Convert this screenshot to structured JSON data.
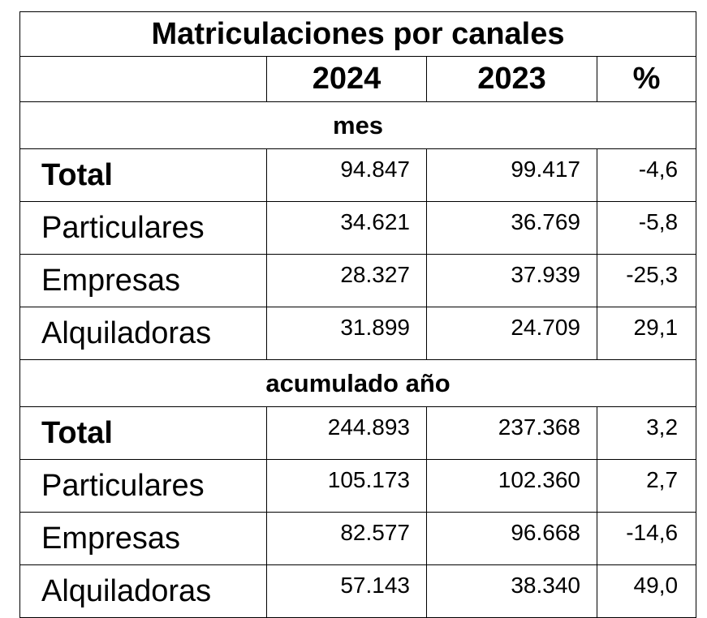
{
  "title": "Matriculaciones por canales",
  "headers": {
    "col2": "2024",
    "col3": "2023",
    "col4": "%"
  },
  "sections": [
    {
      "label": "mes",
      "rows": [
        {
          "label": "Total",
          "bold": true,
          "v2024": "94.847",
          "v2023": "99.417",
          "pct": "-4,6"
        },
        {
          "label": "Particulares",
          "bold": false,
          "v2024": "34.621",
          "v2023": "36.769",
          "pct": "-5,8"
        },
        {
          "label": "Empresas",
          "bold": false,
          "v2024": "28.327",
          "v2023": "37.939",
          "pct": "-25,3"
        },
        {
          "label": "Alquiladoras",
          "bold": false,
          "v2024": "31.899",
          "v2023": "24.709",
          "pct": "29,1"
        }
      ]
    },
    {
      "label": "acumulado año",
      "rows": [
        {
          "label": "Total",
          "bold": true,
          "v2024": "244.893",
          "v2023": "237.368",
          "pct": "3,2"
        },
        {
          "label": "Particulares",
          "bold": false,
          "v2024": "105.173",
          "v2023": "102.360",
          "pct": "2,7"
        },
        {
          "label": "Empresas",
          "bold": false,
          "v2024": "82.577",
          "v2023": "96.668",
          "pct": "-14,6"
        },
        {
          "label": "Alquiladoras",
          "bold": false,
          "v2024": "57.143",
          "v2023": "38.340",
          "pct": "49,0"
        }
      ]
    }
  ]
}
